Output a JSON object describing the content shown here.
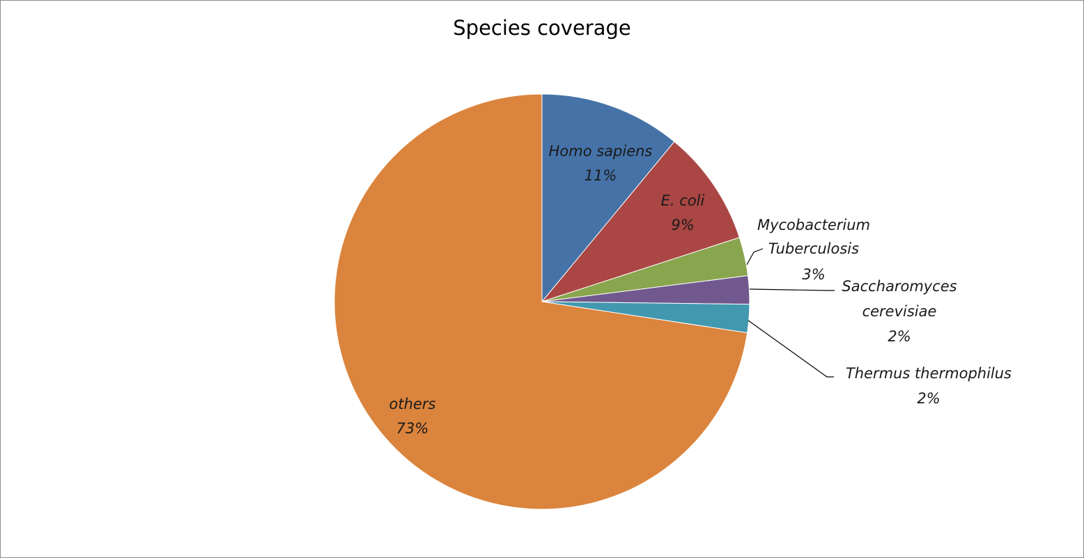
{
  "chart_data": {
    "type": "pie",
    "title": "Species coverage",
    "start_angle_deg": 0,
    "direction": "clockwise",
    "slices": [
      {
        "name": "Homo sapiens",
        "value": 11,
        "label_pct": "11%",
        "color": "#4572a7",
        "leader": false
      },
      {
        "name": "E. coli",
        "value": 9,
        "label_pct": "9%",
        "color": "#aa4643",
        "leader": false
      },
      {
        "name": "Mycobacterium Tuberculosis",
        "value": 3,
        "label_pct": "3%",
        "color": "#89a54e",
        "leader": true
      },
      {
        "name": "Saccharomyces cerevisiae",
        "value": 2.2,
        "label_pct": "2%",
        "color": "#71588f",
        "leader": true
      },
      {
        "name": "Thermus thermophilus",
        "value": 2.2,
        "label_pct": "2%",
        "color": "#4198af",
        "leader": true
      },
      {
        "name": "others",
        "value": 72.6,
        "label_pct": "73%",
        "color": "#db843d",
        "leader": false
      }
    ]
  }
}
